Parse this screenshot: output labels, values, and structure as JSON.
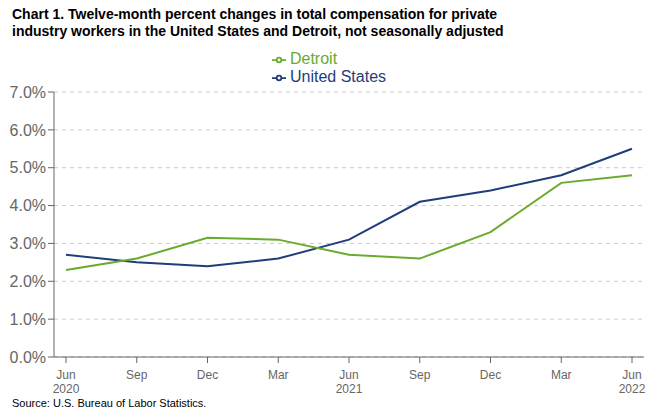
{
  "chart_data": {
    "type": "line",
    "title": "Chart 1. Twelve-month percent changes in total compensation for private\nindustry workers in the United States and Detroit, not seasonally adjusted",
    "annotations": [
      "Source: U.S. Bureau of Labor Statistics."
    ],
    "categories": [
      "Jun\n2020",
      "Sep",
      "Dec",
      "Mar",
      "Jun\n2021",
      "Sep",
      "Dec",
      "Mar",
      "Jun\n2022"
    ],
    "series": [
      {
        "name": "United States",
        "color": "#1f3d7a",
        "values": [
          2.7,
          2.5,
          2.4,
          2.6,
          3.1,
          4.1,
          4.4,
          4.8,
          5.5
        ]
      },
      {
        "name": "Detroit",
        "color": "#6aaa2e",
        "values": [
          2.3,
          2.6,
          3.15,
          3.1,
          2.7,
          2.6,
          3.3,
          4.6,
          4.8
        ]
      }
    ],
    "ylim": [
      0.0,
      7.0
    ],
    "yticks": [
      {
        "value": 0,
        "label": "0.0%"
      },
      {
        "value": 1,
        "label": "1.0%"
      },
      {
        "value": 2,
        "label": "2.0%"
      },
      {
        "value": 3,
        "label": "3.0%"
      },
      {
        "value": 4,
        "label": "4.0%"
      },
      {
        "value": 5,
        "label": "5.0%"
      },
      {
        "value": 6,
        "label": "6.0%"
      },
      {
        "value": 7,
        "label": "7.0%"
      }
    ],
    "grid": true,
    "legend": "top"
  }
}
